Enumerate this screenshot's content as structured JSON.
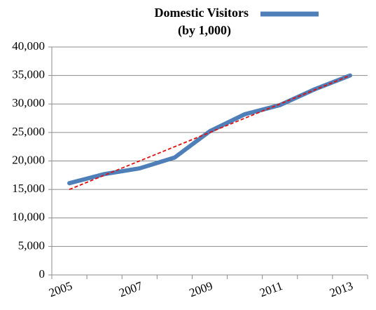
{
  "chart_data": {
    "type": "line",
    "subtitle": "(by 1,000)",
    "categories": [
      "2005",
      null,
      "2007",
      null,
      "2009",
      null,
      "2011",
      null,
      "2013"
    ],
    "series": [
      {
        "name": "Domestic Visitors",
        "color": "#4f7fb8",
        "values": [
          16100,
          17700,
          18700,
          20600,
          25200,
          28200,
          29800,
          32600,
          35000
        ]
      }
    ],
    "trendline": {
      "color": "#e01010",
      "values": [
        15000,
        17500,
        20000,
        22500,
        25000,
        27500,
        30000,
        32500,
        35000
      ]
    },
    "ylim": [
      0,
      40000
    ],
    "yticks": [
      0,
      {
        "value": 5000,
        "label": "5,000"
      },
      {
        "value": 10000,
        "label": "10,000"
      },
      {
        "value": 15000,
        "label": "15,000"
      },
      {
        "value": 20000,
        "label": "20,000"
      },
      {
        "value": 25000,
        "label": "25,000"
      },
      {
        "value": 30000,
        "label": "30,000"
      },
      {
        "value": 35000,
        "label": "35,000"
      },
      {
        "value": 40000,
        "label": "40,000"
      }
    ],
    "grid": true
  }
}
